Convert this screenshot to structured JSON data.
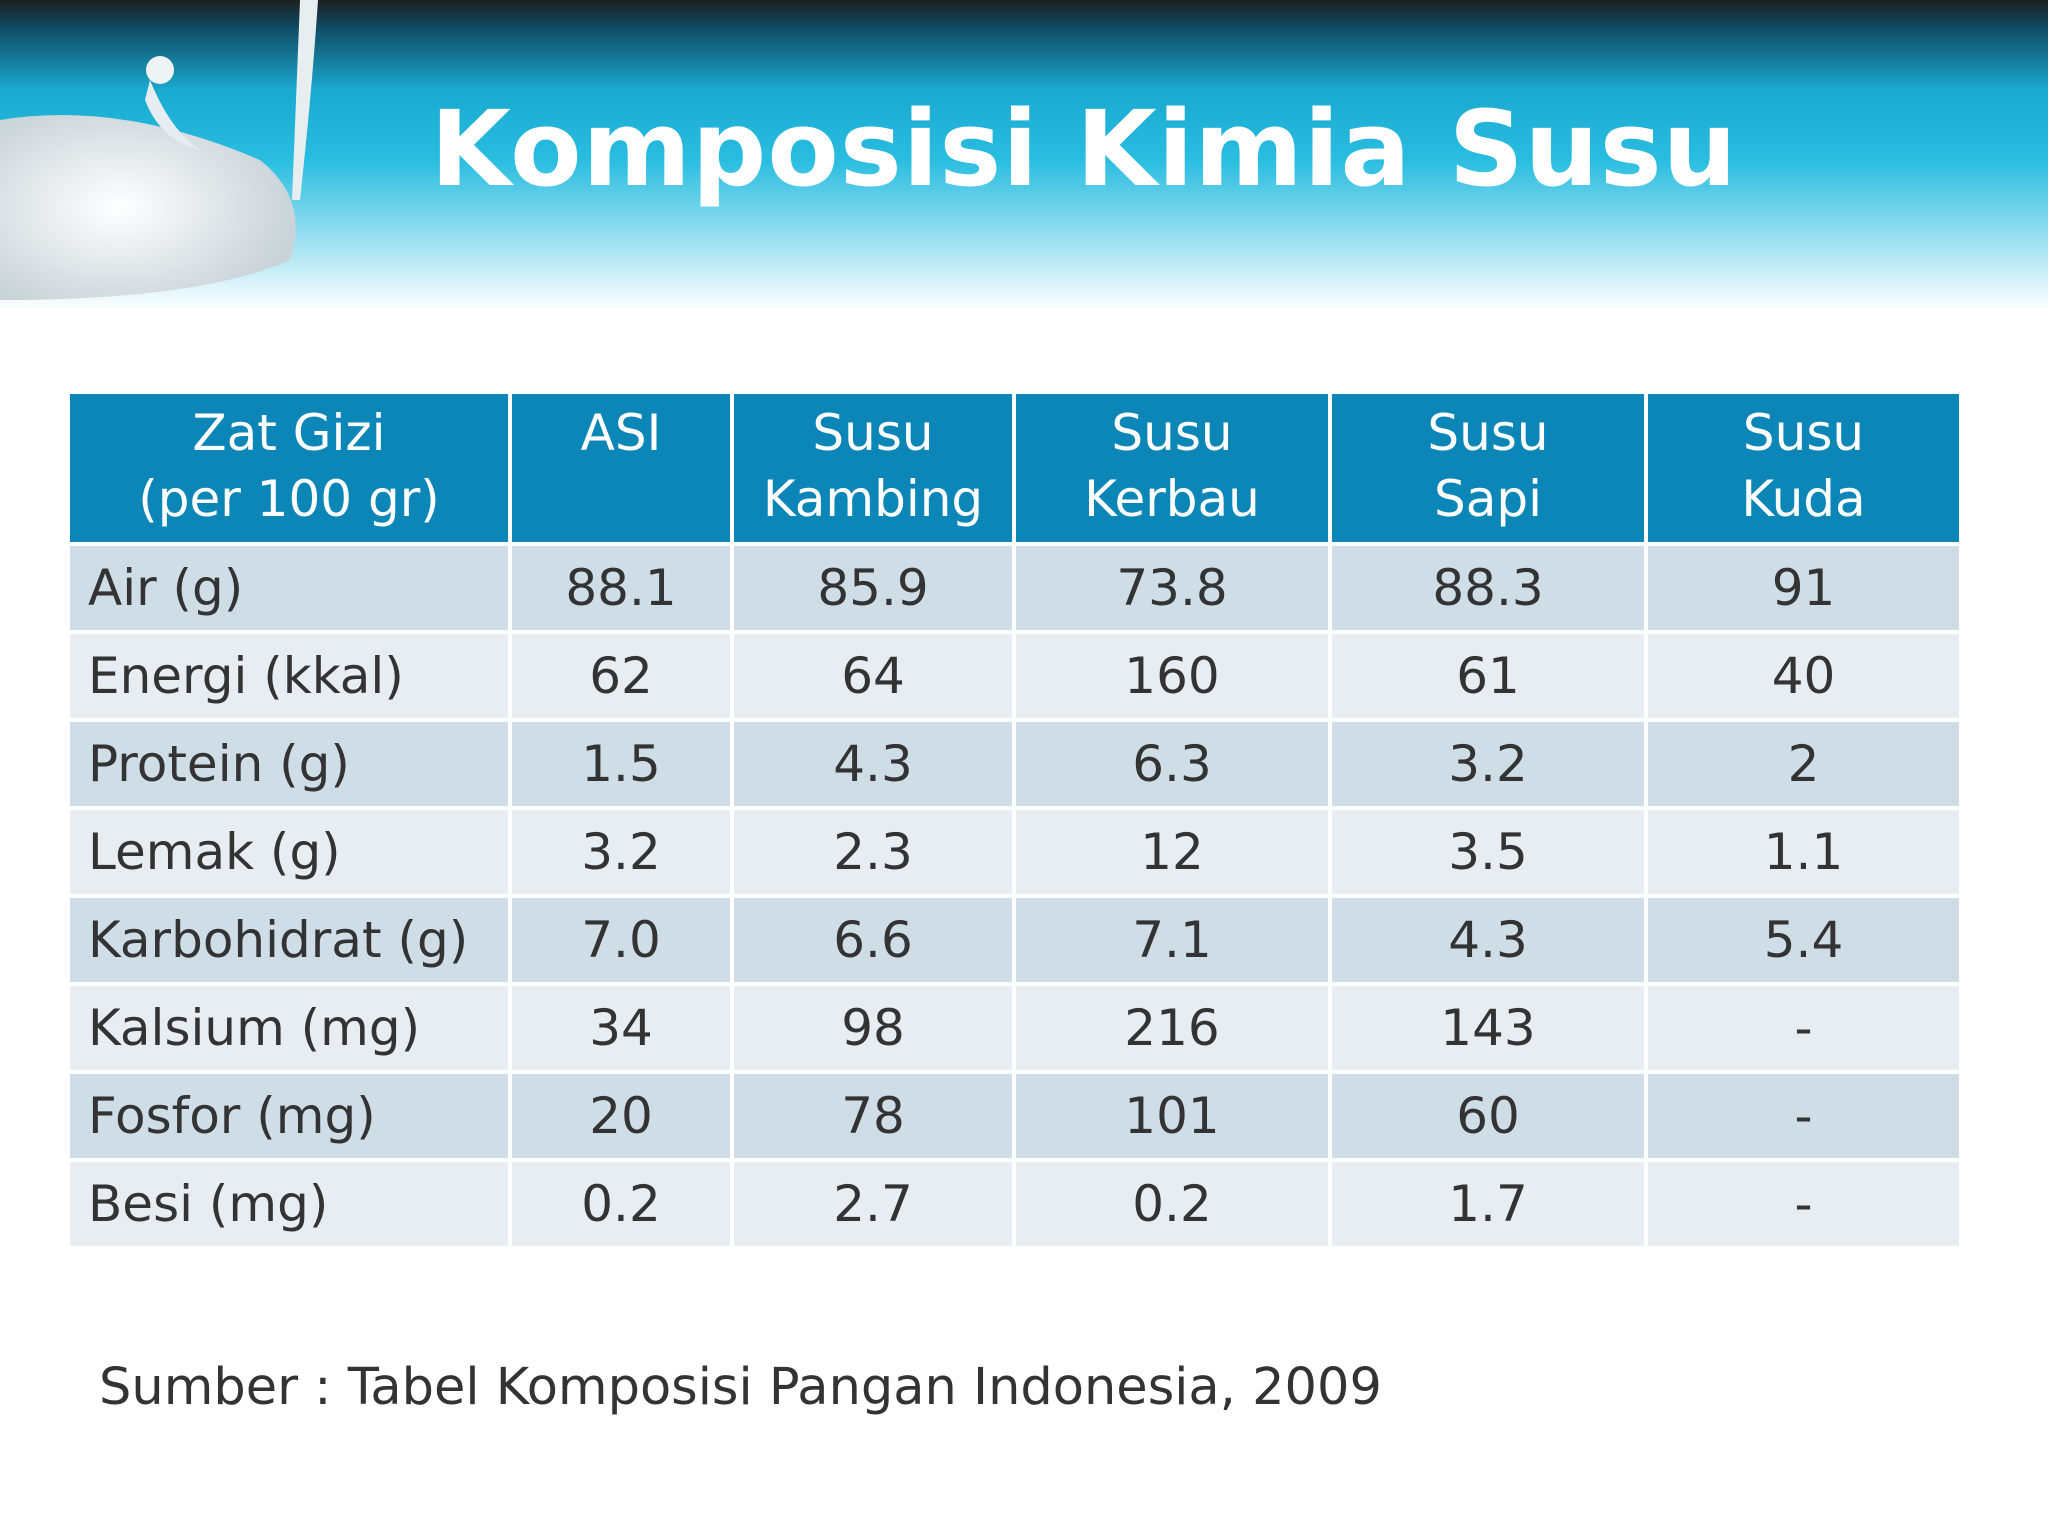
{
  "header": {
    "title": "Komposisi Kimia Susu"
  },
  "table": {
    "columns": [
      [
        "Zat Gizi",
        "(per 100 gr)"
      ],
      [
        "ASI"
      ],
      [
        "Susu",
        "Kambing"
      ],
      [
        "Susu",
        "Kerbau"
      ],
      [
        "Susu",
        "Sapi"
      ],
      [
        "Susu",
        "Kuda"
      ]
    ],
    "rows": [
      [
        "Air (g)",
        "88.1",
        "85.9",
        "73.8",
        "88.3",
        "91"
      ],
      [
        "Energi (kkal)",
        "62",
        "64",
        "160",
        "61",
        "40"
      ],
      [
        "Protein (g)",
        "1.5",
        "4.3",
        "6.3",
        "3.2",
        "2"
      ],
      [
        "Lemak (g)",
        "3.2",
        "2.3",
        "12",
        "3.5",
        "1.1"
      ],
      [
        "Karbohidrat (g)",
        "7.0",
        "6.6",
        "7.1",
        "4.3",
        "5.4"
      ],
      [
        "Kalsium (mg)",
        "34",
        "98",
        "216",
        "143",
        "-"
      ],
      [
        "Fosfor (mg)",
        "20",
        "78",
        "101",
        "60",
        "-"
      ],
      [
        "Besi (mg)",
        "0.2",
        "2.7",
        "0.2",
        "1.7",
        "-"
      ]
    ]
  },
  "footer": {
    "source": "Sumber : Tabel Komposisi Pangan Indonesia, 2009"
  }
}
